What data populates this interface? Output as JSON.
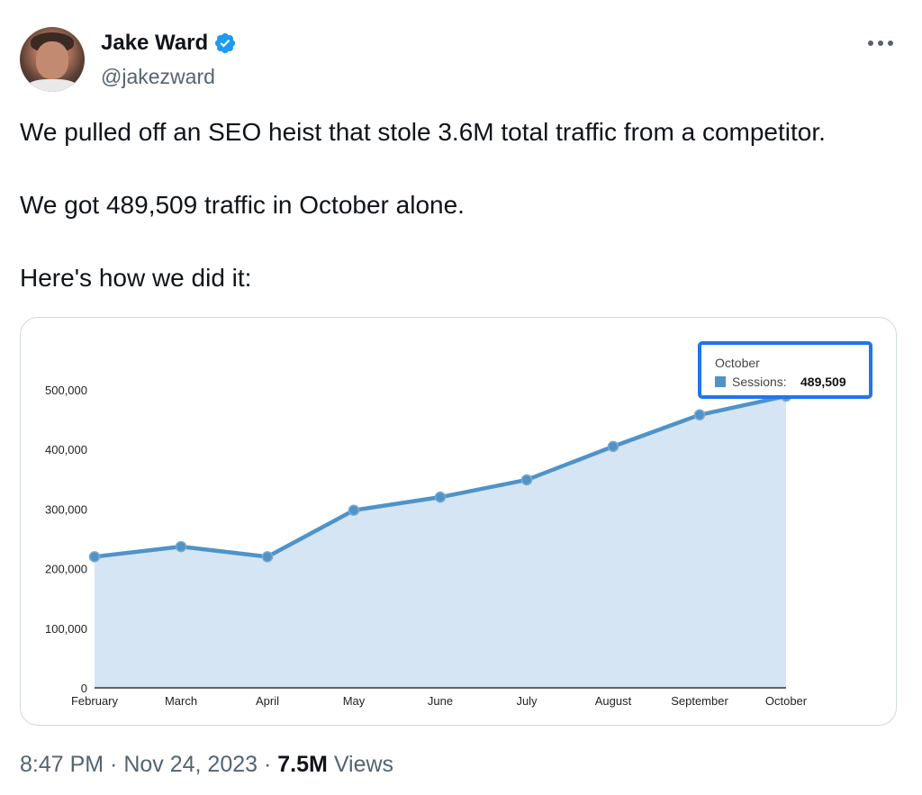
{
  "author": {
    "name": "Jake Ward",
    "handle": "@jakezward",
    "verified": true,
    "avatar_icon": "avatar-photo"
  },
  "menu": {
    "icon": "more-horizontal-icon"
  },
  "tweet": {
    "lines": [
      "We pulled off an SEO heist that stole 3.6M total traffic from a competitor.",
      "We got 489,509 traffic in October alone.",
      "Here's how we did it:"
    ]
  },
  "meta": {
    "time": "8:47 PM",
    "separator": " · ",
    "date": "Nov 24, 2023",
    "views_count": "7.5M",
    "views_label": "Views"
  },
  "colors": {
    "line": "#4f93c8",
    "fill": "#d5e5f3",
    "tooltip_border": "#1f76ef",
    "verified": "#1d9bf0"
  },
  "chart_data": {
    "type": "area",
    "series": [
      {
        "name": "Sessions",
        "values": [
          220000,
          237000,
          220000,
          298000,
          320000,
          349000,
          405000,
          458000,
          489509
        ]
      }
    ],
    "categories": [
      "February",
      "March",
      "April",
      "May",
      "June",
      "July",
      "August",
      "September",
      "October"
    ],
    "ylim": [
      0,
      500000
    ],
    "yticks": [
      0,
      100000,
      200000,
      300000,
      400000,
      500000
    ],
    "ytick_labels": [
      "0",
      "100,000",
      "200,000",
      "300,000",
      "400,000",
      "500,000"
    ],
    "tooltip": {
      "title": "October",
      "series_label": "Sessions:",
      "value": "489,509"
    },
    "title": "",
    "xlabel": "",
    "ylabel": ""
  }
}
